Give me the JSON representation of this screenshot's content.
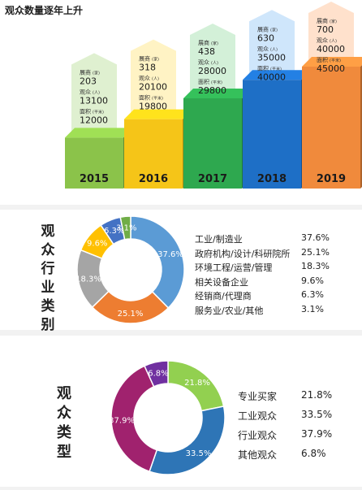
{
  "growth_chart": {
    "title": "观众数量逐年上升",
    "unit_labels": {
      "exhibitors": "展商",
      "exhibitors_unit": "(家)",
      "visitors": "观众",
      "visitors_unit": "(人)",
      "area": "面积",
      "area_unit": "(平米)"
    },
    "colors": [
      "#8bc34a",
      "#f5c518",
      "#2ea84f",
      "#1e6fc6",
      "#f08a3c"
    ],
    "arrow_colors": [
      "#dff0d0",
      "#fff3c4",
      "#d3f0d8",
      "#cfe6fb",
      "#ffe1cc"
    ]
  },
  "industry_chart": {
    "title_chars": [
      "观",
      "众",
      "行",
      "业",
      "类",
      "别"
    ]
  },
  "type_chart": {
    "title_chars": [
      "观",
      "众",
      "类",
      "型"
    ]
  },
  "chart_data": [
    {
      "type": "bar",
      "title": "观众数量逐年上升",
      "categories": [
        "2015",
        "2016",
        "2017",
        "2018",
        "2019"
      ],
      "series": [
        {
          "name": "展商",
          "values": [
            203,
            318,
            438,
            630,
            700
          ]
        },
        {
          "name": "观众",
          "values": [
            13100,
            20100,
            28000,
            35000,
            40000
          ]
        },
        {
          "name": "面积",
          "values": [
            12000,
            19800,
            29800,
            40000,
            45000
          ]
        }
      ]
    },
    {
      "type": "pie",
      "labels": [
        "工业/制造业",
        "政府机构/设计/科研院所",
        "环境工程/运营/管理",
        "相关设备企业",
        "经销商/代理商",
        "服务业/农业/其他"
      ],
      "values": [
        37.6,
        25.1,
        18.3,
        9.6,
        6.3,
        3.1
      ],
      "value_labels": [
        "37.6%",
        "25.1%",
        "18.3%",
        "9.6%",
        "6.3%",
        "3.1%"
      ],
      "colors": [
        "#5b9bd5",
        "#ed7d31",
        "#a5a5a5",
        "#ffc000",
        "#4472c4",
        "#70ad47"
      ]
    },
    {
      "type": "pie",
      "labels": [
        "专业买家",
        "工业观众",
        "行业观众",
        "其他观众"
      ],
      "values": [
        21.8,
        33.5,
        37.9,
        6.8
      ],
      "value_labels": [
        "21.8%",
        "33.5%",
        "37.9%",
        "6.8%"
      ],
      "colors": [
        "#92d050",
        "#2e75b6",
        "#a0226e",
        "#7030a0"
      ]
    }
  ]
}
